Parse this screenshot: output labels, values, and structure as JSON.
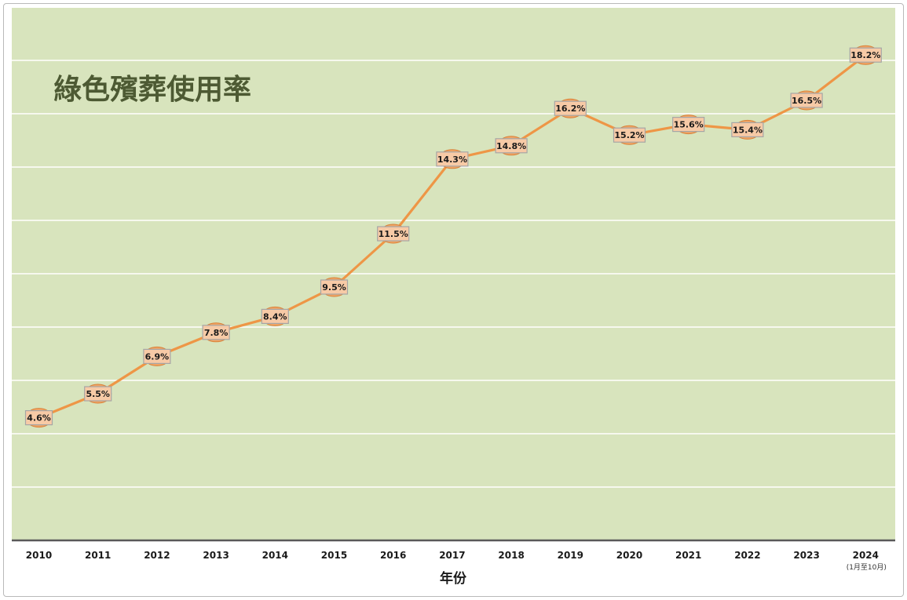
{
  "chart_data": {
    "type": "line",
    "title": "綠色殯葬使用率",
    "xlabel": "年份",
    "ylabel": "",
    "categories": [
      "2010",
      "2011",
      "2012",
      "2013",
      "2014",
      "2015",
      "2016",
      "2017",
      "2018",
      "2019",
      "2020",
      "2021",
      "2022",
      "2023",
      "2024"
    ],
    "category_notes": [
      "",
      "",
      "",
      "",
      "",
      "",
      "",
      "",
      "",
      "",
      "",
      "",
      "",
      "",
      "(1月至10月)"
    ],
    "series": [
      {
        "values": [
          4.6,
          5.5,
          6.9,
          7.8,
          8.4,
          9.5,
          11.5,
          14.3,
          14.8,
          16.2,
          15.2,
          15.6,
          15.4,
          16.5,
          18.2
        ],
        "labels": [
          "4.6%",
          "5.5%",
          "6.9%",
          "7.8%",
          "8.4%",
          "9.5%",
          "11.5%",
          "14.3%",
          "14.8%",
          "16.2%",
          "15.2%",
          "15.6%",
          "15.4%",
          "16.5%",
          "18.2%"
        ]
      }
    ],
    "ylim": [
      0,
      20
    ],
    "grid": true,
    "legend": "none",
    "colors": {
      "plot_background": "#d8e4bd",
      "gridline": "#ffffff",
      "axis": "#595959",
      "line": "#ee9646",
      "marker": "#f0a566",
      "label_background": "#f7caa6",
      "label_border": "#a6a6a6",
      "title": "#4d5a33"
    }
  }
}
